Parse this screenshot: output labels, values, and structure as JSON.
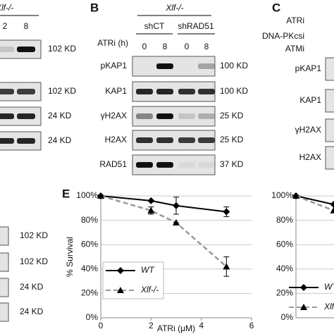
{
  "panels": {
    "A": {
      "header": "Xlf-/-",
      "lanes": [
        "2",
        "8"
      ],
      "sizes": [
        "102 KD",
        "102 KD",
        "24 KD",
        "24 KD"
      ]
    },
    "B": {
      "label": "B",
      "header": "Xlf-/-",
      "groups": [
        "shCT",
        "shRAD51"
      ],
      "lane_title": "ATRi (h)",
      "lanes": [
        "0",
        "8",
        "0",
        "8"
      ],
      "rows": [
        "pKAP1",
        "KAP1",
        "γH2AX",
        "H2AX",
        "RAD51"
      ],
      "sizes": [
        "100 KD",
        "100 KD",
        "25 KD",
        "25 KD",
        "37 KD"
      ]
    },
    "C": {
      "label": "C",
      "treatments": [
        "ATRi",
        "DNA-PKcsi",
        "ATMi"
      ],
      "rows": [
        "pKAP1",
        "KAP1",
        "γH2AX",
        "H2AX"
      ]
    },
    "D": {
      "sizes": [
        "102 KD",
        "102 KD",
        "24 KD",
        "24 KD"
      ]
    }
  },
  "chart_data": [
    {
      "type": "line",
      "panel": "E",
      "x_label": "ATRi (μM)",
      "y_label": "% Survival",
      "xlim": [
        0,
        6
      ],
      "xticks": [
        0,
        2,
        4,
        6
      ],
      "ylim": [
        0,
        100
      ],
      "yticks": [
        {
          "value": 0,
          "label": "0%"
        },
        {
          "value": 20,
          "label": "20%"
        },
        {
          "value": 40,
          "label": "40%"
        },
        {
          "value": 60,
          "label": "60%"
        },
        {
          "value": 80,
          "label": "80%"
        },
        {
          "value": 100,
          "label": "100%"
        }
      ],
      "grid": true,
      "series": [
        {
          "name": "WT",
          "color": "#000000",
          "dashed": false,
          "marker": "diamond",
          "x": [
            0,
            2,
            3,
            5
          ],
          "values": [
            100,
            96,
            92,
            87
          ],
          "errors": [
            0,
            0,
            7,
            4
          ]
        },
        {
          "name": "Xlf-/-",
          "color": "#999999",
          "dashed": true,
          "marker": "triangle",
          "x": [
            0,
            2,
            3,
            5
          ],
          "values": [
            100,
            88,
            78,
            42
          ],
          "errors": [
            0,
            3,
            0,
            8
          ]
        }
      ]
    },
    {
      "type": "line",
      "ylim": [
        0,
        100
      ],
      "yticks": [
        {
          "value": 0,
          "label": "0%"
        },
        {
          "value": 20,
          "label": "20%"
        },
        {
          "value": 40,
          "label": "40%"
        },
        {
          "value": 60,
          "label": "60%"
        },
        {
          "value": 80,
          "label": "80%"
        },
        {
          "value": 100,
          "label": "100%"
        }
      ],
      "grid": true,
      "series": [
        {
          "name": "WT",
          "color": "#000000",
          "dashed": false,
          "marker": "diamond",
          "x": [
            0,
            1.5
          ],
          "values": [
            100,
            93
          ]
        },
        {
          "name": "Xlf-/-",
          "color": "#999999",
          "dashed": true,
          "marker": "triangle",
          "x": [
            0,
            1.5
          ],
          "values": [
            100,
            88
          ]
        }
      ]
    }
  ]
}
